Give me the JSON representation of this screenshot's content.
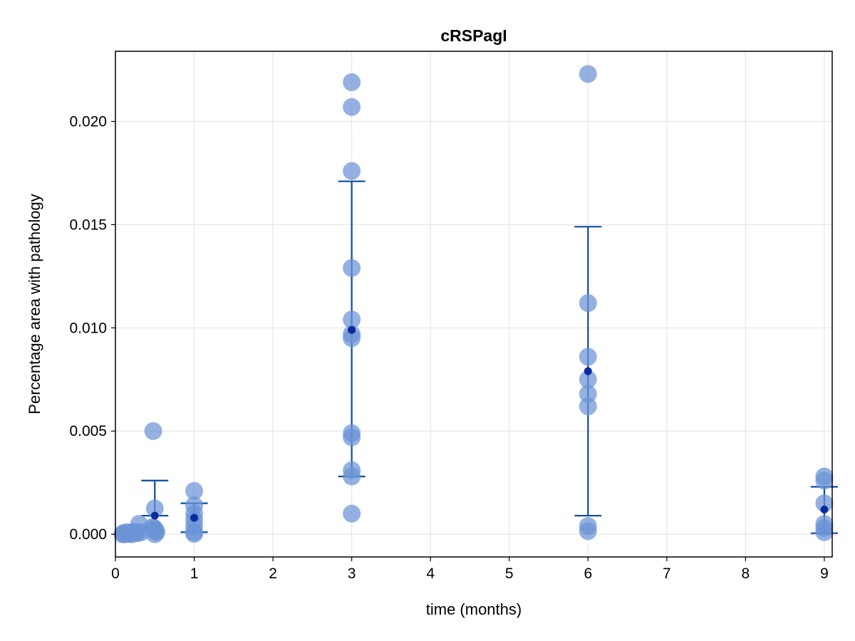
{
  "chart_data": {
    "type": "scatter",
    "title": "cRSPagI",
    "xlabel": "time (months)",
    "ylabel": "Percentage area with pathology",
    "xlim": [
      0,
      9.1
    ],
    "ylim": [
      -0.0011,
      0.0234
    ],
    "x_ticks": [
      0,
      1,
      2,
      3,
      4,
      5,
      6,
      7,
      8,
      9
    ],
    "y_ticks": [
      0.0,
      0.005,
      0.01,
      0.015,
      0.02
    ],
    "y_tick_labels": [
      "0.000",
      "0.005",
      "0.010",
      "0.015",
      "0.020"
    ],
    "grid": true,
    "colors": {
      "points": "#6b93d6",
      "error_bars": "#0a4aa8",
      "means": "#0a2ba0",
      "grid": "#e6e6e6",
      "frame": "#000000"
    },
    "series": [
      {
        "kind": "observations",
        "points": [
          {
            "x": 0.09,
            "y": 0.0
          },
          {
            "x": 0.1,
            "y": 5e-05
          },
          {
            "x": 0.12,
            "y": 0.0
          },
          {
            "x": 0.14,
            "y": 0.0001
          },
          {
            "x": 0.17,
            "y": 2e-05
          },
          {
            "x": 0.19,
            "y": 8e-05
          },
          {
            "x": 0.21,
            "y": 0.0
          },
          {
            "x": 0.23,
            "y": 0.00012
          },
          {
            "x": 0.25,
            "y": 0.0001
          },
          {
            "x": 0.28,
            "y": 5e-05
          },
          {
            "x": 0.3,
            "y": 0.0005
          },
          {
            "x": 0.33,
            "y": 0.0001
          },
          {
            "x": 0.48,
            "y": 0.005
          },
          {
            "x": 0.5,
            "y": 0.00125
          },
          {
            "x": 0.49,
            "y": 0.0003
          },
          {
            "x": 0.51,
            "y": 0.0002
          },
          {
            "x": 0.5,
            "y": 0.0
          },
          {
            "x": 0.52,
            "y": 0.0001
          },
          {
            "x": 0.47,
            "y": 0.00035
          },
          {
            "x": 1.0,
            "y": 0.0021
          },
          {
            "x": 1.0,
            "y": 0.0014
          },
          {
            "x": 1.0,
            "y": 0.001
          },
          {
            "x": 1.0,
            "y": 0.0007
          },
          {
            "x": 1.0,
            "y": 0.0004
          },
          {
            "x": 1.0,
            "y": 0.0001
          },
          {
            "x": 1.0,
            "y": 2e-05
          },
          {
            "x": 3.0,
            "y": 0.0219
          },
          {
            "x": 3.0,
            "y": 0.0207
          },
          {
            "x": 3.0,
            "y": 0.0176
          },
          {
            "x": 3.0,
            "y": 0.0129
          },
          {
            "x": 3.0,
            "y": 0.0104
          },
          {
            "x": 3.0,
            "y": 0.0097
          },
          {
            "x": 3.0,
            "y": 0.0095
          },
          {
            "x": 3.0,
            "y": 0.0049
          },
          {
            "x": 3.0,
            "y": 0.0047
          },
          {
            "x": 3.0,
            "y": 0.0031
          },
          {
            "x": 3.0,
            "y": 0.0028
          },
          {
            "x": 3.0,
            "y": 0.001
          },
          {
            "x": 6.0,
            "y": 0.0223
          },
          {
            "x": 6.0,
            "y": 0.0112
          },
          {
            "x": 6.0,
            "y": 0.0086
          },
          {
            "x": 6.0,
            "y": 0.0075
          },
          {
            "x": 6.0,
            "y": 0.0068
          },
          {
            "x": 6.0,
            "y": 0.0062
          },
          {
            "x": 6.0,
            "y": 0.0004
          },
          {
            "x": 6.0,
            "y": 0.00015
          },
          {
            "x": 9.0,
            "y": 0.0028
          },
          {
            "x": 9.0,
            "y": 0.0026
          },
          {
            "x": 9.0,
            "y": 0.0015
          },
          {
            "x": 9.0,
            "y": 0.0005
          },
          {
            "x": 9.0,
            "y": 0.0003
          },
          {
            "x": 9.0,
            "y": 0.0001
          }
        ]
      },
      {
        "kind": "mean_with_error",
        "points": [
          {
            "x": 0.5,
            "y": 0.0009,
            "lower": 0.0009,
            "upper": 0.0026
          },
          {
            "x": 1.0,
            "y": 0.0008,
            "lower": 0.0001,
            "upper": 0.0015
          },
          {
            "x": 3.0,
            "y": 0.0099,
            "lower": 0.0028,
            "upper": 0.0171
          },
          {
            "x": 6.0,
            "y": 0.0079,
            "lower": 0.0009,
            "upper": 0.0149
          },
          {
            "x": 9.0,
            "y": 0.0012,
            "lower": 5e-05,
            "upper": 0.0023
          }
        ]
      }
    ]
  }
}
